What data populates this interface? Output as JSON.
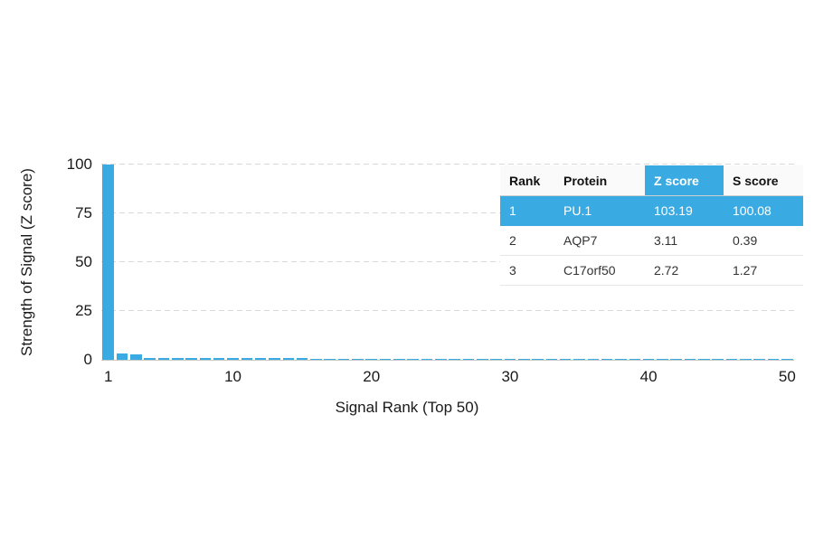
{
  "chart_data": {
    "type": "bar",
    "title": "",
    "xlabel": "Signal Rank (Top 50)",
    "ylabel": "Strength of Signal (Z score)",
    "ylim": [
      0,
      100
    ],
    "yticks": [
      0,
      25,
      50,
      75,
      100
    ],
    "xticks": [
      1,
      10,
      20,
      30,
      40,
      50
    ],
    "grid": "dashed-horizontal",
    "legend": "none",
    "bar_color": "#3aabe2",
    "x": [
      1,
      2,
      3,
      4,
      5,
      6,
      7,
      8,
      9,
      10,
      11,
      12,
      13,
      14,
      15,
      16,
      17,
      18,
      19,
      20,
      21,
      22,
      23,
      24,
      25,
      26,
      27,
      28,
      29,
      30,
      31,
      32,
      33,
      34,
      35,
      36,
      37,
      38,
      39,
      40,
      41,
      42,
      43,
      44,
      45,
      46,
      47,
      48,
      49,
      50
    ],
    "values": [
      103.19,
      3.11,
      2.72,
      0.95,
      0.92,
      0.9,
      0.88,
      0.86,
      0.84,
      0.82,
      0.8,
      0.78,
      0.76,
      0.74,
      0.72,
      0.7,
      0.68,
      0.66,
      0.65,
      0.63,
      0.61,
      0.6,
      0.58,
      0.57,
      0.55,
      0.54,
      0.52,
      0.51,
      0.5,
      0.48,
      0.47,
      0.46,
      0.45,
      0.43,
      0.42,
      0.41,
      0.4,
      0.39,
      0.38,
      0.37,
      0.36,
      0.35,
      0.34,
      0.33,
      0.32,
      0.31,
      0.3,
      0.29,
      0.28,
      0.27
    ]
  },
  "table": {
    "headers": {
      "rank": "Rank",
      "protein": "Protein",
      "z": "Z score",
      "s": "S score"
    },
    "rows": [
      {
        "rank": "1",
        "protein": "PU.1",
        "z": "103.19",
        "s": "100.08",
        "highlight": true
      },
      {
        "rank": "2",
        "protein": "AQP7",
        "z": "3.11",
        "s": "0.39",
        "highlight": false
      },
      {
        "rank": "3",
        "protein": "C17orf50",
        "z": "2.72",
        "s": "1.27",
        "highlight": false
      }
    ],
    "accent_color": "#3aabe2"
  }
}
